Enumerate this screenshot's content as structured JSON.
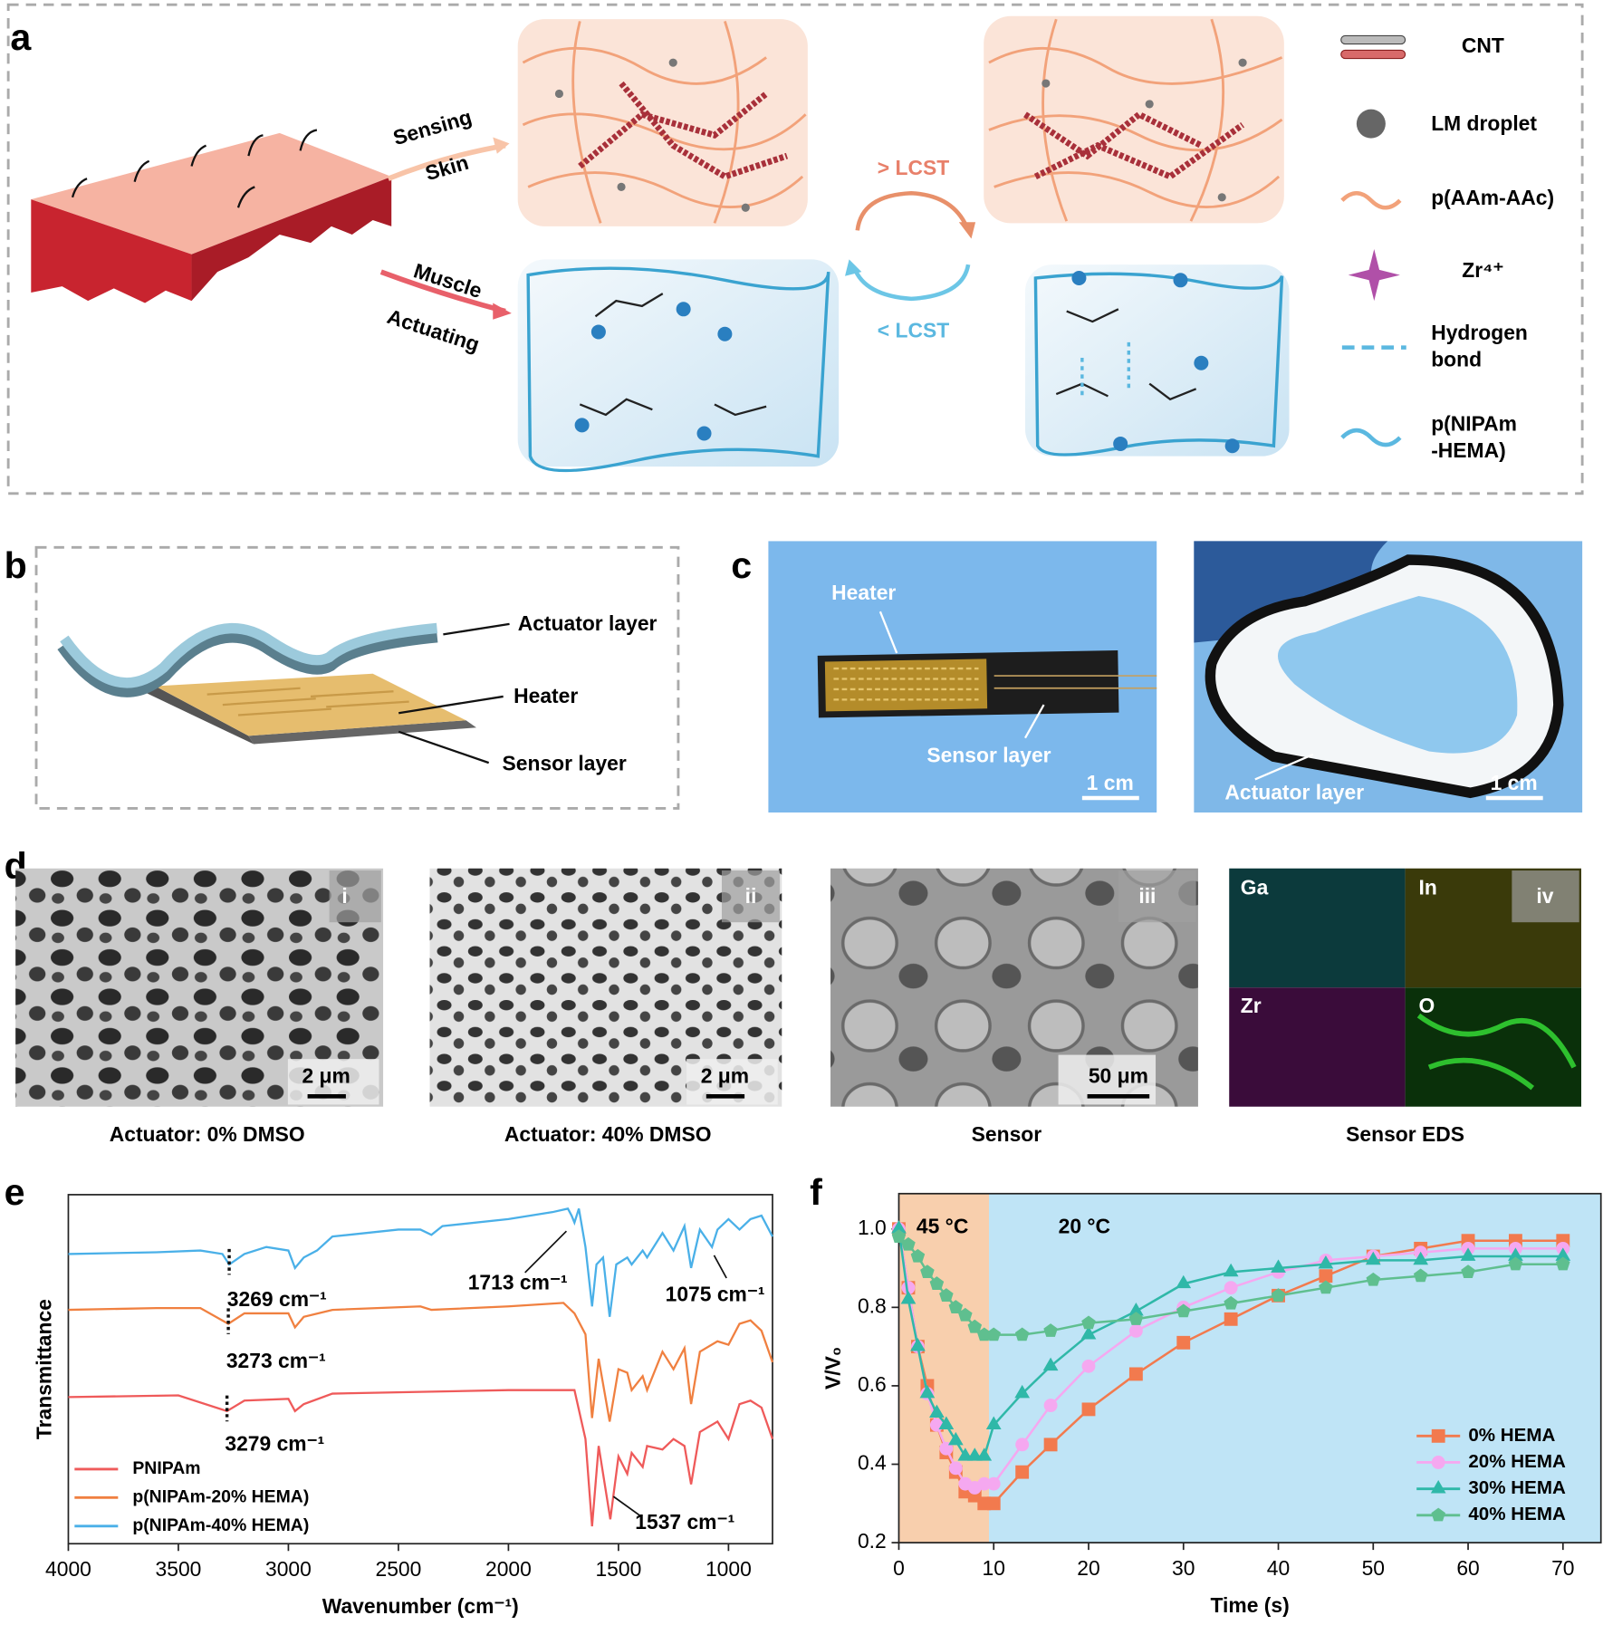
{
  "panel_labels": [
    "a",
    "b",
    "c",
    "d",
    "e",
    "f"
  ],
  "schematic": {
    "sensing_arrow": [
      "Sensing",
      "Skin"
    ],
    "actuating_arrow": [
      "Muscle",
      "Actuating"
    ],
    "transitions": [
      "> LCST",
      "< LCST"
    ],
    "legend": [
      [
        "CNT"
      ],
      [
        "LM droplet"
      ],
      [
        "p(AAm-AAc)"
      ],
      [
        "Zr⁴⁺"
      ],
      [
        "Hydrogen",
        "bond"
      ],
      [
        "p(NIPAm",
        "-HEMA)"
      ]
    ]
  },
  "layers": {
    "labels": [
      "Actuator layer",
      "Heater",
      "Sensor layer"
    ]
  },
  "photos": {
    "left": {
      "labels": [
        "Heater",
        "Sensor layer"
      ],
      "scale": "1 cm"
    },
    "right": {
      "labels": [
        "Actuator layer"
      ],
      "scale": "1 cm"
    }
  },
  "sem": {
    "panels": [
      {
        "index": "i",
        "scale": "2 μm",
        "caption": "Actuator: 0% DMSO"
      },
      {
        "index": "ii",
        "scale": "2 μm",
        "caption": "Actuator: 40% DMSO"
      },
      {
        "index": "iii",
        "scale": "50 μm",
        "caption": "Sensor"
      },
      {
        "index": "iv",
        "elements": [
          "Ga",
          "In",
          "Zr",
          "O"
        ],
        "caption": "Sensor EDS"
      }
    ]
  },
  "chart_data": [
    {
      "type": "line",
      "xlabel": "Wavenumber (cm⁻¹)",
      "ylabel": "Transmittance",
      "xlim": [
        4000,
        800
      ],
      "ylim": [
        0,
        100
      ],
      "xticks": [
        4000,
        3500,
        3000,
        2500,
        2000,
        1500,
        1000
      ],
      "grid": false,
      "legend": "lower left",
      "series": [
        {
          "name": "PNIPAm",
          "color": "#ef5a5a",
          "x": [
            4000,
            3500,
            3279,
            3200,
            3000,
            2970,
            2930,
            2800,
            2400,
            2000,
            1700,
            1650,
            1620,
            1590,
            1537,
            1500,
            1460,
            1440,
            1390,
            1370,
            1300,
            1250,
            1200,
            1170,
            1130,
            1050,
            1000,
            950,
            900,
            850,
            800
          ],
          "values": [
            42,
            42.5,
            38,
            41,
            41.5,
            38,
            40,
            43,
            43.5,
            44,
            44,
            30,
            5,
            28,
            7,
            25,
            20,
            26,
            22,
            28,
            27,
            30,
            28,
            17,
            32,
            35,
            30,
            40,
            41,
            39,
            30
          ]
        },
        {
          "name": "p(NIPAm-20% HEMA)",
          "color": "#f08040",
          "x": [
            4000,
            3600,
            3400,
            3273,
            3200,
            3000,
            2970,
            2930,
            2800,
            2400,
            2350,
            2000,
            1750,
            1700,
            1650,
            1620,
            1590,
            1540,
            1500,
            1460,
            1440,
            1390,
            1370,
            1300,
            1250,
            1200,
            1170,
            1130,
            1050,
            1000,
            950,
            900,
            850,
            800
          ],
          "values": [
            67,
            67.5,
            67.5,
            63,
            66,
            66,
            62,
            65,
            67,
            68,
            67,
            68,
            69,
            66,
            60,
            36,
            53,
            35,
            50,
            49,
            44,
            48,
            44,
            55,
            50,
            56,
            40,
            55,
            58,
            57,
            63,
            64,
            61,
            52
          ]
        },
        {
          "name": "p(NIPAm-40% HEMA)",
          "color": "#4ab0e8",
          "x": [
            4000,
            3600,
            3400,
            3300,
            3269,
            3200,
            3100,
            3000,
            2970,
            2930,
            2870,
            2800,
            2500,
            2400,
            2350,
            2300,
            2000,
            1800,
            1730,
            1713,
            1700,
            1680,
            1650,
            1620,
            1600,
            1570,
            1540,
            1510,
            1460,
            1440,
            1390,
            1370,
            1300,
            1250,
            1200,
            1170,
            1130,
            1075,
            1050,
            1000,
            950,
            900,
            850,
            800
          ],
          "values": [
            83,
            83.5,
            84,
            83,
            80,
            83,
            85,
            84,
            79,
            82,
            84,
            88,
            90,
            90,
            88.5,
            91,
            93,
            95,
            96,
            94,
            92,
            96,
            85,
            68,
            80,
            82,
            65,
            80,
            82,
            80,
            84,
            82,
            89,
            84,
            91,
            79,
            90,
            85,
            90,
            93,
            90,
            93,
            94,
            88
          ]
        }
      ],
      "annotations": [
        {
          "text": "3269 cm⁻¹",
          "x": 3269,
          "series": 2
        },
        {
          "text": "1713 cm⁻¹",
          "x": 1713,
          "series": 2
        },
        {
          "text": "1075 cm⁻¹",
          "x": 1075,
          "series": 2
        },
        {
          "text": "3273 cm⁻¹",
          "x": 3273,
          "series": 1
        },
        {
          "text": "3279 cm⁻¹",
          "x": 3279,
          "series": 0
        },
        {
          "text": "1537 cm⁻¹",
          "x": 1537,
          "series": 0
        }
      ]
    },
    {
      "type": "line",
      "xlabel": "Time (s)",
      "ylabel": "V/V₀",
      "xlim": [
        0,
        74
      ],
      "ylim": [
        0.2,
        1.09
      ],
      "xticks": [
        0,
        10,
        20,
        30,
        40,
        50,
        60,
        70
      ],
      "yticks": [
        0.2,
        0.4,
        0.6,
        0.8,
        {
          "value": 1,
          "label": "1.0"
        }
      ],
      "grid": false,
      "legend": "lower right",
      "regions": [
        {
          "label": "45 °C",
          "from": 0,
          "to": 9.5,
          "color": "#f8cfad"
        },
        {
          "label": "20 °C",
          "from": 9.5,
          "to": 74,
          "color": "#bfe4f6"
        }
      ],
      "x": [
        0,
        1,
        2,
        3,
        4,
        5,
        6,
        7,
        8,
        9,
        10,
        13,
        16,
        20,
        25,
        30,
        35,
        40,
        45,
        50,
        55,
        60,
        65,
        70
      ],
      "series": [
        {
          "name": "0% HEMA",
          "color": "#f27a4e",
          "marker": "square",
          "values": [
            1.0,
            0.85,
            0.7,
            0.6,
            0.5,
            0.43,
            0.38,
            0.33,
            0.32,
            0.3,
            0.3,
            0.38,
            0.45,
            0.54,
            0.63,
            0.71,
            0.77,
            0.83,
            0.88,
            0.93,
            0.95,
            0.97,
            0.97,
            0.97
          ]
        },
        {
          "name": "20% HEMA",
          "color": "#f5a8f0",
          "marker": "circle",
          "values": [
            1.0,
            0.85,
            0.7,
            0.58,
            0.5,
            0.44,
            0.39,
            0.35,
            0.34,
            0.35,
            0.35,
            0.45,
            0.55,
            0.65,
            0.74,
            0.8,
            0.85,
            0.89,
            0.92,
            0.93,
            0.94,
            0.95,
            0.95,
            0.95
          ]
        },
        {
          "name": "30% HEMA",
          "color": "#2fb8a8",
          "marker": "triangle",
          "values": [
            1.0,
            0.82,
            0.7,
            0.58,
            0.53,
            0.5,
            0.46,
            0.42,
            0.42,
            0.42,
            0.5,
            0.58,
            0.65,
            0.73,
            0.79,
            0.86,
            0.89,
            0.9,
            0.91,
            0.92,
            0.92,
            0.93,
            0.93,
            0.93
          ]
        },
        {
          "name": "40% HEMA",
          "color": "#5fbf8f",
          "marker": "pentagon",
          "values": [
            0.98,
            0.96,
            0.93,
            0.89,
            0.86,
            0.83,
            0.8,
            0.78,
            0.75,
            0.73,
            0.73,
            0.73,
            0.74,
            0.76,
            0.77,
            0.79,
            0.81,
            0.83,
            0.85,
            0.87,
            0.88,
            0.89,
            0.91,
            0.91
          ]
        }
      ]
    }
  ]
}
